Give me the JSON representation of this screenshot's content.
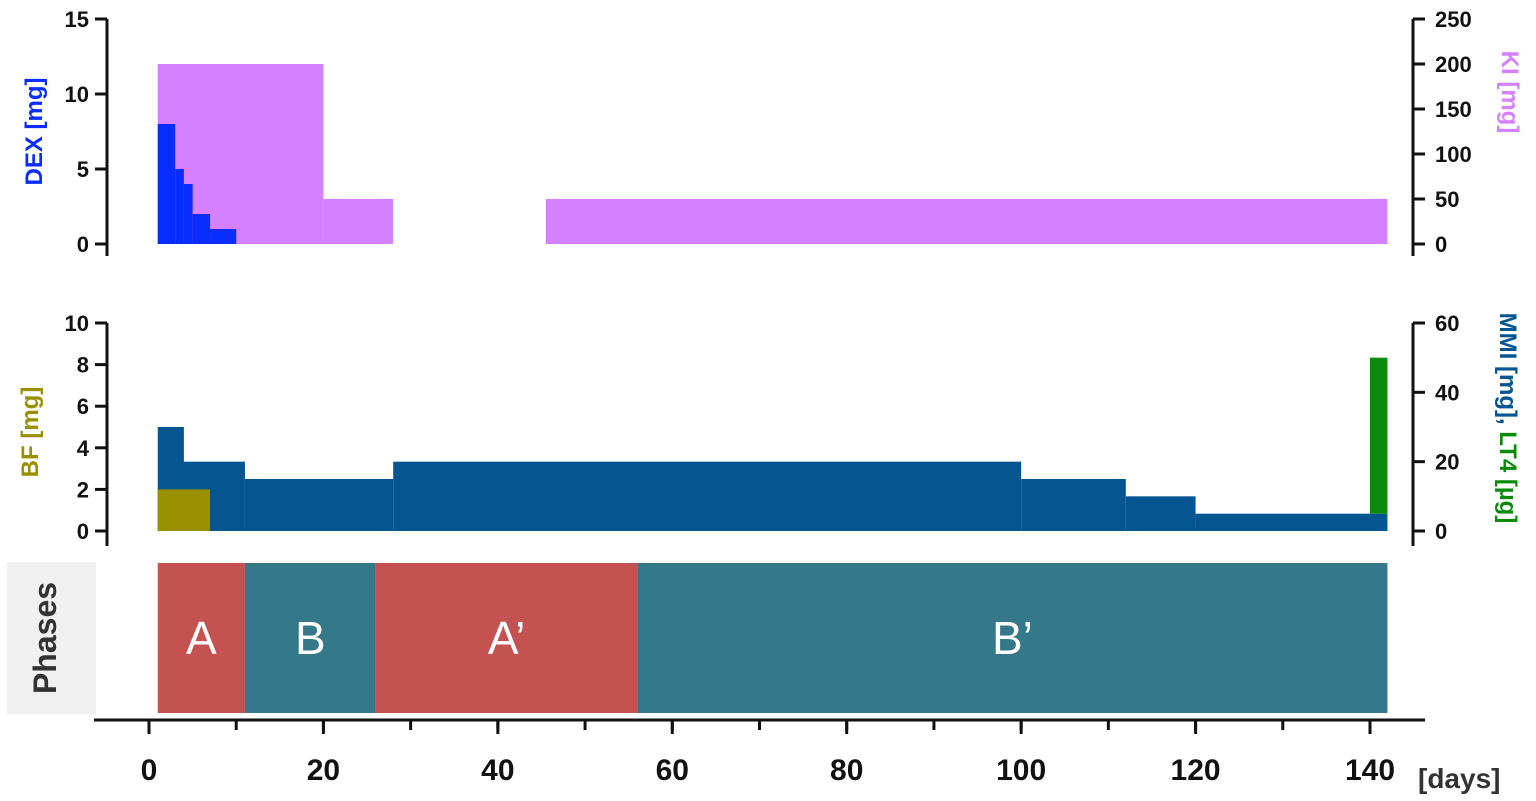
{
  "colors": {
    "dex": "#0a2dff",
    "ki": "#d580ff",
    "mmi": "#055590",
    "bf": "#999000",
    "lt4": "#0a8c0a",
    "phase_a": "#c45250",
    "phase_b": "#35788a",
    "phases_box": "#f0f0f0",
    "axis": "#111111"
  },
  "chart_data": [
    {
      "type": "area",
      "panel": "top",
      "left_axis": {
        "label": "DEX [mg]",
        "ylim": [
          0,
          15
        ],
        "ticks": [
          0,
          5,
          10,
          15
        ]
      },
      "right_axis": {
        "label": "KI [mg]",
        "ylim": [
          0,
          250
        ],
        "ticks": [
          0,
          50,
          100,
          150,
          200,
          250
        ]
      },
      "series": [
        {
          "axis": "right",
          "color": "#d580ff",
          "segments": [
            {
              "x0": 1,
              "x1": 20,
              "y": 200
            },
            {
              "x0": 20,
              "x1": 28,
              "y": 50
            },
            {
              "x0": 45.5,
              "x1": 142,
              "y": 50
            }
          ]
        },
        {
          "axis": "left",
          "color": "#0a2dff",
          "segments": [
            {
              "x0": 1,
              "x1": 3,
              "y": 8
            },
            {
              "x0": 3,
              "x1": 4,
              "y": 5
            },
            {
              "x0": 4,
              "x1": 5,
              "y": 4
            },
            {
              "x0": 5,
              "x1": 7,
              "y": 2
            },
            {
              "x0": 7,
              "x1": 10,
              "y": 1
            }
          ]
        }
      ]
    },
    {
      "type": "area",
      "panel": "middle",
      "left_axis": {
        "label": "BF [mg]",
        "ylim": [
          0,
          10
        ],
        "ticks": [
          0,
          2,
          4,
          6,
          8,
          10
        ]
      },
      "right_axis": {
        "label_parts": [
          "MMI [mg], ",
          "LT4 [µg]"
        ],
        "ylim": [
          0,
          60
        ],
        "ticks": [
          0,
          20,
          40,
          60
        ]
      },
      "series": [
        {
          "axis": "right",
          "color": "#055590",
          "segments": [
            {
              "x0": 1,
              "x1": 4,
              "y": 30
            },
            {
              "x0": 3,
              "x1": 11,
              "y": 20
            },
            {
              "x0": 11,
              "x1": 28,
              "y": 15
            },
            {
              "x0": 28,
              "x1": 100,
              "y": 20
            },
            {
              "x0": 100,
              "x1": 112,
              "y": 15
            },
            {
              "x0": 112,
              "x1": 120,
              "y": 10
            },
            {
              "x0": 120,
              "x1": 142,
              "y": 5
            }
          ]
        },
        {
          "axis": "left",
          "color": "#999000",
          "segments": [
            {
              "x0": 1,
              "x1": 7,
              "y": 2
            }
          ]
        },
        {
          "axis": "right",
          "color": "#0a8c0a",
          "segments": [
            {
              "x0": 140,
              "x1": 142,
              "y": 50,
              "y0": 5
            }
          ]
        }
      ]
    },
    {
      "type": "bar",
      "panel": "phases",
      "row_label": "Phases",
      "phases": [
        {
          "label": "A",
          "x0": 1,
          "x1": 11,
          "color": "#c45250"
        },
        {
          "label": "B",
          "x0": 11,
          "x1": 26,
          "color": "#35788a"
        },
        {
          "label": "A’",
          "x0": 26,
          "x1": 56,
          "color": "#c45250"
        },
        {
          "label": "B’",
          "x0": 56,
          "x1": 142,
          "color": "#35788a"
        }
      ]
    },
    {
      "type": "axis",
      "panel": "x-axis",
      "xlim": [
        -6,
        147
      ],
      "ticks": [
        0,
        20,
        40,
        60,
        80,
        100,
        120,
        140
      ],
      "minor_step": 10,
      "unit_label": "[days]"
    }
  ]
}
